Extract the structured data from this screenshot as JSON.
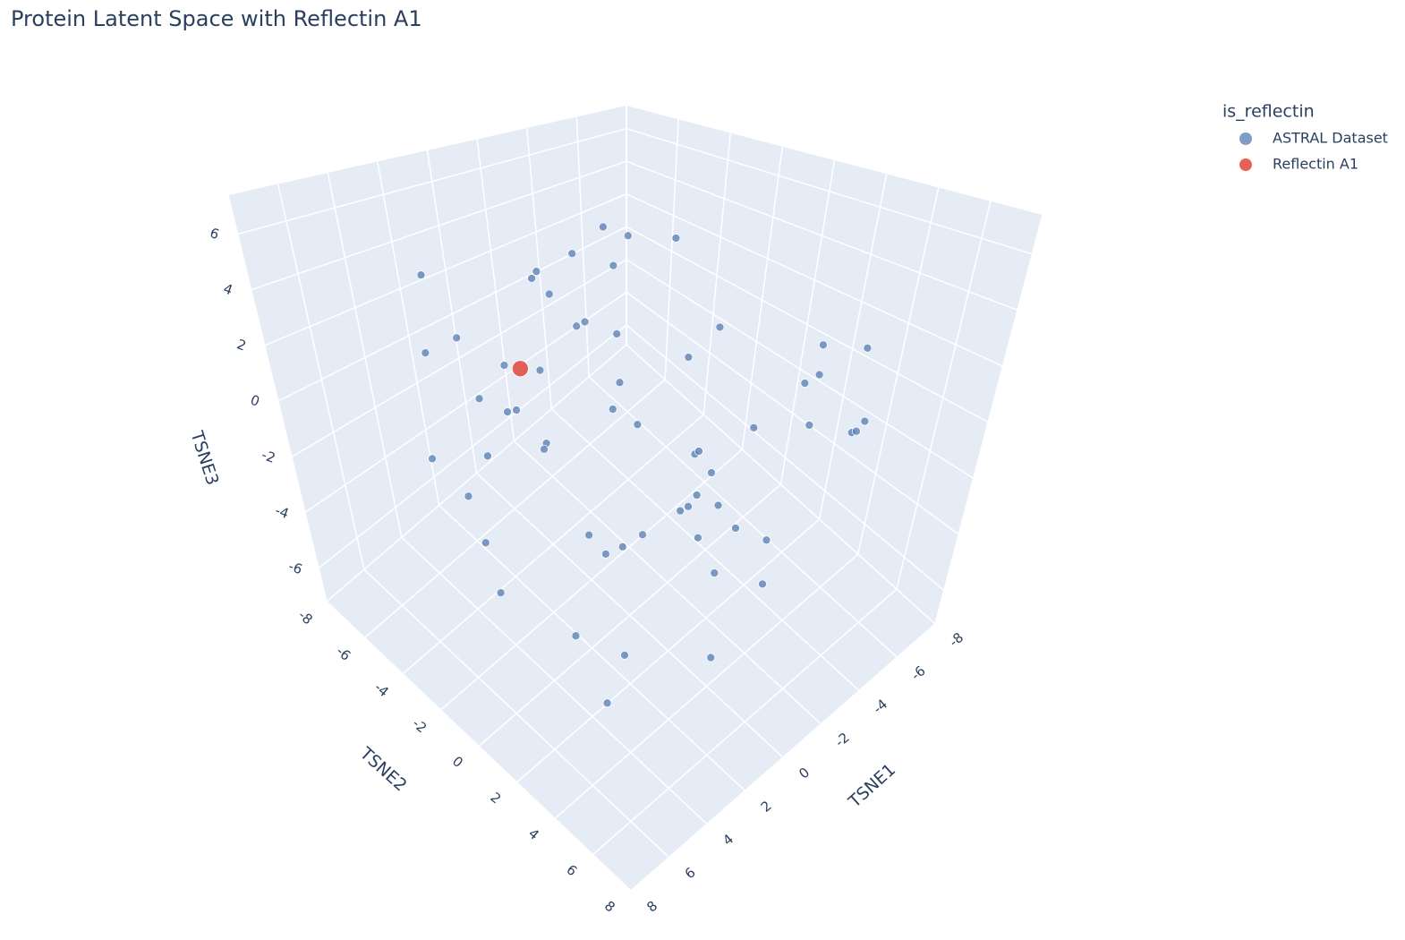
{
  "chart_data": {
    "type": "scatter3d",
    "title": "Protein Latent Space with Reflectin A1",
    "xlabel": "TSNE1",
    "ylabel": "TSNE2",
    "zlabel": "TSNE3",
    "xlim": [
      -8,
      8
    ],
    "ylim": [
      -8,
      8
    ],
    "zlim": [
      -7.2,
      7.4
    ],
    "xticks": [
      -8,
      -6,
      -4,
      -2,
      0,
      2,
      4,
      6,
      8
    ],
    "yticks": [
      -8,
      -6,
      -4,
      -2,
      0,
      2,
      4,
      6,
      8
    ],
    "zticks": [
      -6,
      -4,
      -2,
      0,
      2,
      4,
      6
    ],
    "legend_title": "is_reflectin",
    "series": [
      {
        "name": "ASTRAL Dataset",
        "color": "#4a74ad",
        "x": [
          -6.5,
          -5.8,
          -5,
          -4.2,
          -3.5,
          -3,
          -2.4,
          -1.8,
          -1.2,
          -0.6,
          0,
          0.5,
          1.1,
          1.7,
          2.3,
          2.9,
          3.5,
          4.1,
          4.8,
          5.5,
          -6,
          -5.2,
          -4.4,
          -3.7,
          -2.9,
          -2.2,
          -1.5,
          -0.9,
          -0.3,
          0.4,
          1,
          1.6,
          2.2,
          2.8,
          3.4,
          4,
          4.7,
          5.3,
          6,
          -4.8,
          -3.9,
          -2.6,
          -1.4,
          -0.2,
          0.9,
          2,
          3.1,
          4.2,
          -5.5,
          -3.3,
          -1.1,
          1.3,
          3.6,
          -2.7,
          0.2,
          2.5,
          -4,
          -0.8,
          1.8,
          4.5
        ],
        "y": [
          2,
          -3,
          5,
          -1,
          4,
          -5,
          1,
          6,
          -2,
          3,
          -4,
          0,
          5,
          -6,
          2,
          -1,
          4,
          -3,
          1,
          -2,
          -4,
          3,
          -1,
          6,
          -3,
          2,
          -5,
          4,
          0,
          -2,
          5,
          -4,
          1,
          -6,
          3,
          -1,
          2,
          0,
          -3,
          1,
          -5,
          4,
          -2,
          6,
          -3,
          0,
          -6,
          3,
          5,
          -4,
          2,
          -1,
          -3,
          7,
          -7,
          5,
          0,
          -5,
          4,
          -2
        ],
        "z": [
          1,
          -2,
          3,
          -4,
          2,
          0,
          -5,
          4,
          -1,
          5,
          -3,
          2,
          -2,
          1,
          -6,
          3,
          0,
          -4,
          2,
          -1,
          3,
          -1,
          -4,
          1,
          5,
          -3,
          2,
          -2,
          0,
          6,
          -5,
          1,
          -3,
          4,
          -1,
          2,
          -4,
          3,
          0,
          -2,
          4,
          -5,
          2,
          -1,
          5,
          -3,
          1,
          -6,
          0,
          3,
          -2,
          4,
          -1,
          2,
          -3,
          1,
          -4,
          3,
          0,
          -5
        ]
      },
      {
        "name": "Reflectin A1",
        "color": "#e0453a",
        "x": [
          0
        ],
        "y": [
          -5
        ],
        "z": [
          -0.5
        ]
      }
    ]
  }
}
